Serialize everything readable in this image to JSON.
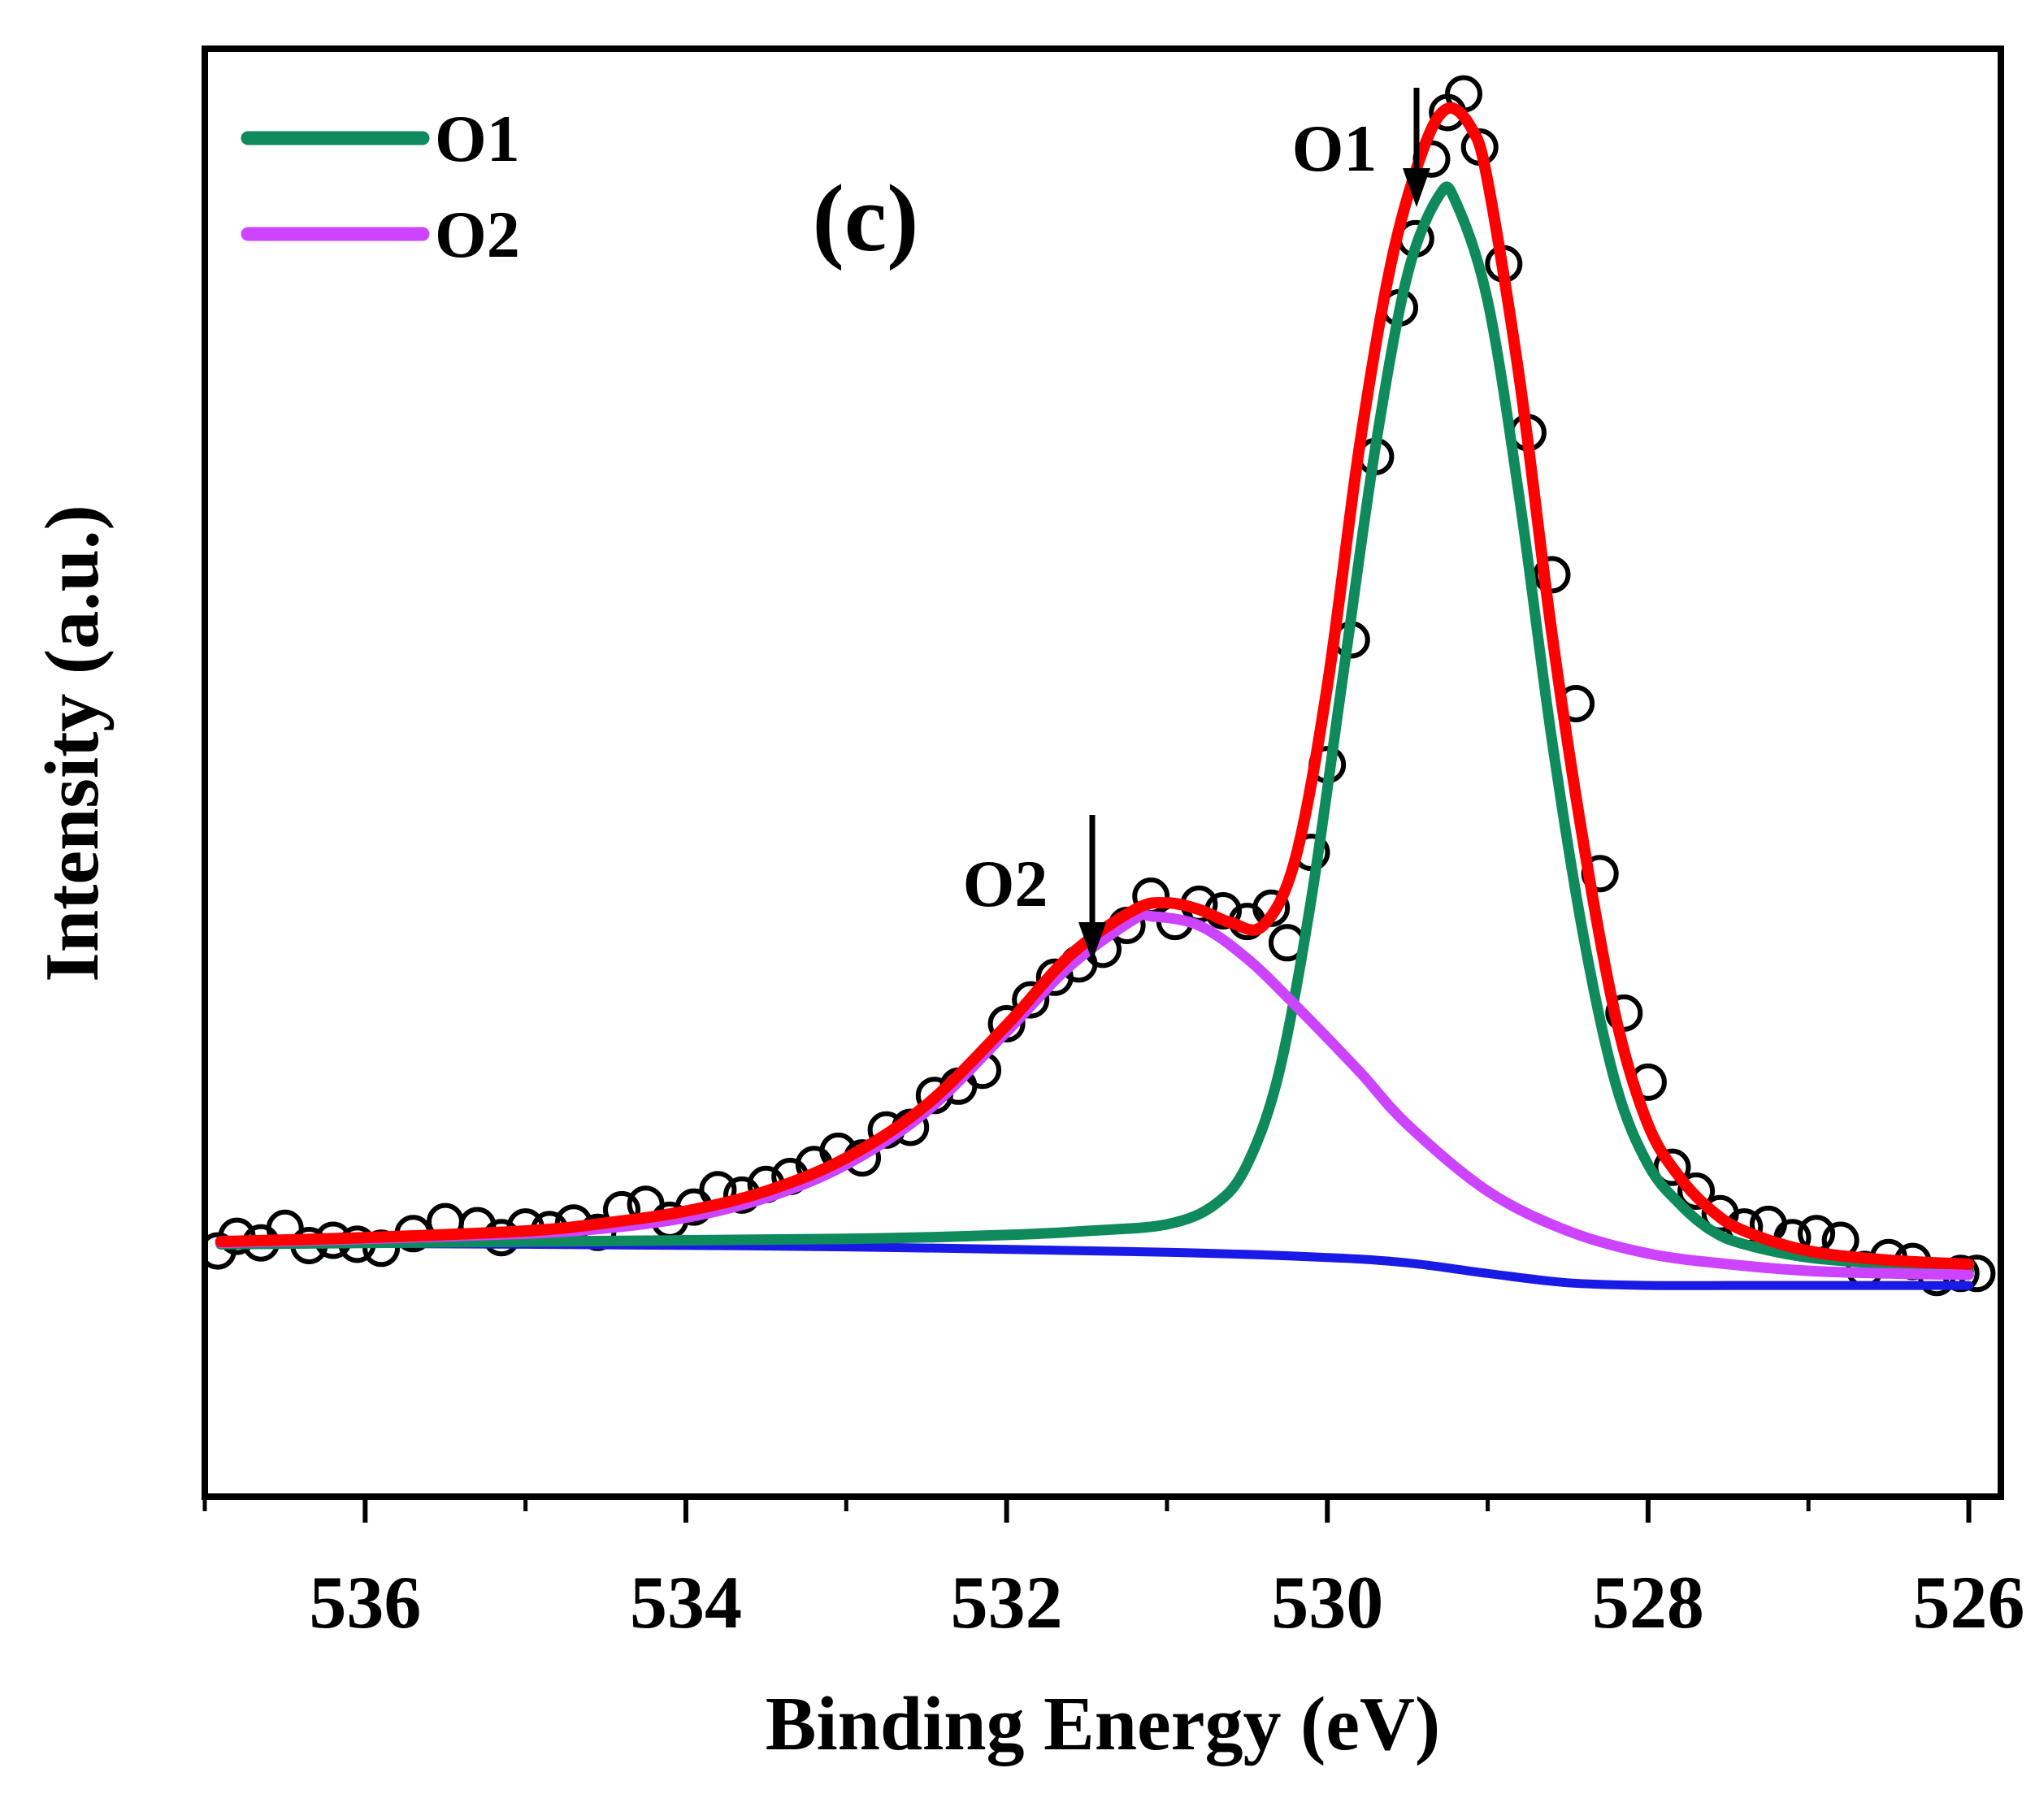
{
  "chart_data": {
    "type": "line",
    "panel_label": "(c)",
    "xlabel": "Binding Energy (eV)",
    "ylabel": "Intensity (a.u.)",
    "xlim": [
      537,
      525.8
    ],
    "ylim": [
      -0.09,
      1.0
    ],
    "x_reversed": true,
    "y_ticks_shown": false,
    "grid": false,
    "legend_position": "top-left",
    "x_ticks": [
      {
        "value": 536,
        "label": "536"
      },
      {
        "value": 534,
        "label": "534"
      },
      {
        "value": 532,
        "label": "532"
      },
      {
        "value": 530,
        "label": "530"
      },
      {
        "value": 528,
        "label": "528"
      },
      {
        "value": 526,
        "label": "526"
      }
    ],
    "x_minor_ticks": [
      537,
      535,
      533,
      531,
      529,
      527
    ],
    "legend": [
      {
        "label": "O1",
        "color": "#0E8A5C"
      },
      {
        "label": "O2",
        "color": "#CC44FF"
      }
    ],
    "annotations": [
      {
        "text": "O1",
        "x": 529.2,
        "y": 0.955,
        "arrow": true
      },
      {
        "text": "O2",
        "x": 531.3,
        "y": 0.39,
        "arrow": true
      }
    ],
    "series": [
      {
        "name": "Background",
        "color": "#1A1AE6",
        "style": "line",
        "x": [
          536.9,
          535,
          533,
          531,
          530,
          529.5,
          529,
          528.5,
          528,
          527.5,
          527,
          526.5,
          526.0
        ],
        "y": [
          0.101,
          0.1,
          0.098,
          0.094,
          0.09,
          0.086,
          0.078,
          0.071,
          0.069,
          0.069,
          0.069,
          0.069,
          0.069
        ]
      },
      {
        "name": "O1",
        "color": "#0E8A5C",
        "style": "line",
        "x": [
          536.9,
          535,
          533,
          532,
          531.5,
          531,
          530.7,
          530.5,
          530.3,
          530.1,
          529.9,
          529.7,
          529.5,
          529.3,
          529.2,
          529.0,
          528.8,
          528.6,
          528.4,
          528.2,
          528.0,
          527.8,
          527.6,
          527.4,
          527.0,
          526.5,
          526.0
        ],
        "y": [
          0.1,
          0.102,
          0.104,
          0.107,
          0.11,
          0.115,
          0.13,
          0.16,
          0.23,
          0.36,
          0.53,
          0.7,
          0.83,
          0.89,
          0.885,
          0.81,
          0.66,
          0.48,
          0.33,
          0.22,
          0.16,
          0.13,
          0.11,
          0.1,
          0.09,
          0.085,
          0.08
        ]
      },
      {
        "name": "O2",
        "color": "#CC44FF",
        "style": "line",
        "x": [
          536.9,
          536,
          535,
          534.5,
          534,
          533.5,
          533,
          532.5,
          532,
          531.6,
          531.2,
          531.1,
          530.8,
          530.5,
          530.2,
          529.8,
          529.5,
          529.0,
          528.5,
          528.0,
          527.5,
          527.0,
          526.5,
          526.0
        ],
        "y": [
          0.101,
          0.104,
          0.108,
          0.112,
          0.12,
          0.135,
          0.16,
          0.2,
          0.26,
          0.31,
          0.345,
          0.347,
          0.34,
          0.315,
          0.28,
          0.23,
          0.19,
          0.14,
          0.11,
          0.093,
          0.085,
          0.08,
          0.078,
          0.077
        ]
      },
      {
        "name": "Fit",
        "color": "#FF0000",
        "style": "line",
        "x": [
          536.9,
          536,
          535,
          534.5,
          534,
          533.5,
          533,
          532.5,
          532,
          531.6,
          531.2,
          531.0,
          530.8,
          530.6,
          530.4,
          530.2,
          530.0,
          529.8,
          529.6,
          529.4,
          529.25,
          529.1,
          529.0,
          528.8,
          528.6,
          528.4,
          528.2,
          528.0,
          527.8,
          527.6,
          527.4,
          527.0,
          526.5,
          526.0
        ],
        "y": [
          0.102,
          0.105,
          0.11,
          0.116,
          0.125,
          0.14,
          0.165,
          0.205,
          0.265,
          0.318,
          0.352,
          0.357,
          0.352,
          0.342,
          0.34,
          0.39,
          0.52,
          0.7,
          0.84,
          0.925,
          0.955,
          0.94,
          0.9,
          0.75,
          0.56,
          0.4,
          0.27,
          0.19,
          0.15,
          0.125,
          0.11,
          0.095,
          0.088,
          0.085
        ]
      },
      {
        "name": "Experimental",
        "color": "#000000",
        "style": "markers",
        "marker": "open-circle",
        "x": [
          536.92,
          536.8,
          536.65,
          536.5,
          536.35,
          536.2,
          536.05,
          535.9,
          535.7,
          535.5,
          535.3,
          535.15,
          535.0,
          534.85,
          534.7,
          534.55,
          534.4,
          534.25,
          534.1,
          533.95,
          533.8,
          533.65,
          533.5,
          533.35,
          533.2,
          533.05,
          532.9,
          532.75,
          532.6,
          532.45,
          532.3,
          532.15,
          532.0,
          531.85,
          531.7,
          531.55,
          531.4,
          531.25,
          531.1,
          530.95,
          530.8,
          530.65,
          530.5,
          530.35,
          530.25,
          530.1,
          530.0,
          529.85,
          529.7,
          529.55,
          529.45,
          529.35,
          529.25,
          529.15,
          529.05,
          528.9,
          528.75,
          528.6,
          528.45,
          528.3,
          528.15,
          528.0,
          527.85,
          527.7,
          527.55,
          527.4,
          527.25,
          527.1,
          526.95,
          526.8,
          526.65,
          526.5,
          526.35,
          526.2,
          526.05,
          525.95
        ],
        "y": [
          0.095,
          0.106,
          0.101,
          0.112,
          0.099,
          0.103,
          0.1,
          0.097,
          0.108,
          0.117,
          0.114,
          0.105,
          0.113,
          0.111,
          0.116,
          0.109,
          0.126,
          0.13,
          0.118,
          0.128,
          0.141,
          0.137,
          0.145,
          0.151,
          0.16,
          0.17,
          0.165,
          0.186,
          0.188,
          0.212,
          0.219,
          0.231,
          0.266,
          0.284,
          0.301,
          0.311,
          0.322,
          0.34,
          0.362,
          0.343,
          0.356,
          0.351,
          0.343,
          0.353,
          0.327,
          0.395,
          0.461,
          0.555,
          0.693,
          0.805,
          0.857,
          0.917,
          0.952,
          0.966,
          0.926,
          0.838,
          0.711,
          0.604,
          0.507,
          0.379,
          0.274,
          0.222,
          0.158,
          0.14,
          0.123,
          0.113,
          0.115,
          0.105,
          0.108,
          0.103,
          0.081,
          0.09,
          0.087,
          0.075,
          0.078,
          0.078
        ]
      }
    ]
  }
}
